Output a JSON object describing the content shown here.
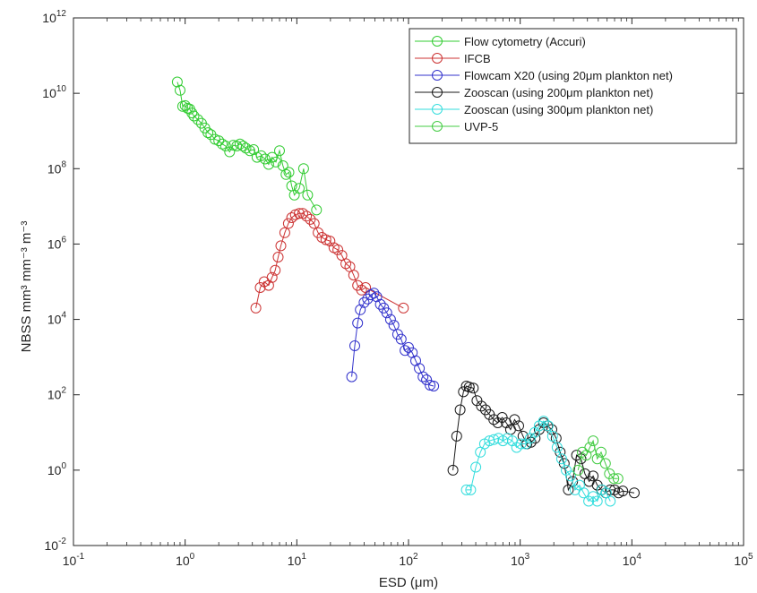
{
  "chart_data": {
    "type": "scatter",
    "title": "",
    "xlabel": "ESD (μm)",
    "ylabel": "NBSS mm³ mm⁻³ m⁻³",
    "xscale": "log",
    "yscale": "log",
    "xlim": [
      0.1,
      100000
    ],
    "ylim": [
      0.01,
      1000000000000
    ],
    "x_ticks": [
      {
        "base": "10",
        "exp": "-1"
      },
      {
        "base": "10",
        "exp": "0"
      },
      {
        "base": "10",
        "exp": "1"
      },
      {
        "base": "10",
        "exp": "2"
      },
      {
        "base": "10",
        "exp": "3"
      },
      {
        "base": "10",
        "exp": "4"
      },
      {
        "base": "10",
        "exp": "5"
      }
    ],
    "y_ticks": [
      {
        "base": "10",
        "exp": "-2"
      },
      {
        "base": "10",
        "exp": "0"
      },
      {
        "base": "10",
        "exp": "2"
      },
      {
        "base": "10",
        "exp": "4"
      },
      {
        "base": "10",
        "exp": "6"
      },
      {
        "base": "10",
        "exp": "8"
      },
      {
        "base": "10",
        "exp": "10"
      },
      {
        "base": "10",
        "exp": "12"
      }
    ],
    "grid": false,
    "legend_position": "top-right",
    "marker": "open-circle",
    "series": [
      {
        "name": "Flow cytometry (Accuri)",
        "color": "#33cc33",
        "points": [
          [
            0.85,
            20000000000
          ],
          [
            0.9,
            12000000000
          ],
          [
            0.95,
            4500000000
          ],
          [
            1.0,
            4700000000
          ],
          [
            1.05,
            4000000000
          ],
          [
            1.1,
            3800000000
          ],
          [
            1.15,
            3000000000
          ],
          [
            1.2,
            2500000000
          ],
          [
            1.3,
            2000000000
          ],
          [
            1.4,
            1600000000
          ],
          [
            1.5,
            1200000000
          ],
          [
            1.6,
            900000000
          ],
          [
            1.7,
            800000000
          ],
          [
            1.85,
            600000000
          ],
          [
            2.0,
            550000000
          ],
          [
            2.15,
            450000000
          ],
          [
            2.3,
            400000000
          ],
          [
            2.5,
            280000000
          ],
          [
            2.7,
            420000000
          ],
          [
            2.9,
            400000000
          ],
          [
            3.1,
            450000000
          ],
          [
            3.3,
            400000000
          ],
          [
            3.5,
            350000000
          ],
          [
            3.8,
            300000000
          ],
          [
            4.1,
            320000000
          ],
          [
            4.4,
            200000000
          ],
          [
            4.8,
            220000000
          ],
          [
            5.2,
            180000000
          ],
          [
            5.6,
            130000000
          ],
          [
            6.0,
            200000000
          ],
          [
            6.5,
            150000000
          ],
          [
            7.0,
            300000000
          ],
          [
            7.5,
            120000000
          ],
          [
            8.0,
            70000000
          ],
          [
            8.5,
            80000000
          ],
          [
            9.0,
            35000000
          ],
          [
            9.5,
            20000000
          ],
          [
            10.5,
            30000000
          ],
          [
            11.5,
            100000000
          ],
          [
            12.5,
            20000000
          ],
          [
            15.0,
            8000000
          ]
        ]
      },
      {
        "name": "IFCB",
        "color": "#cc3333",
        "points": [
          [
            4.3,
            20000
          ],
          [
            4.7,
            70000
          ],
          [
            5.1,
            100000
          ],
          [
            5.6,
            80000
          ],
          [
            6.0,
            130000
          ],
          [
            6.4,
            200000
          ],
          [
            6.8,
            450000
          ],
          [
            7.2,
            900000
          ],
          [
            7.8,
            2000000
          ],
          [
            8.4,
            3500000
          ],
          [
            9.0,
            5000000
          ],
          [
            9.7,
            6000000
          ],
          [
            10.5,
            6500000
          ],
          [
            11.3,
            6500000
          ],
          [
            12.2,
            5500000
          ],
          [
            13.2,
            4500000
          ],
          [
            14.3,
            3500000
          ],
          [
            15.5,
            2000000
          ],
          [
            16.8,
            1500000
          ],
          [
            18.2,
            1300000
          ],
          [
            19.8,
            1200000
          ],
          [
            21.5,
            800000
          ],
          [
            23.3,
            700000
          ],
          [
            25.3,
            500000
          ],
          [
            27.5,
            300000
          ],
          [
            29.8,
            250000
          ],
          [
            32.3,
            150000
          ],
          [
            35.0,
            80000
          ],
          [
            38.0,
            60000
          ],
          [
            41.3,
            70000
          ],
          [
            90.0,
            20000
          ]
        ]
      },
      {
        "name": "Flowcam X20 (using 20μm plankton net)",
        "color": "#3333cc",
        "points": [
          [
            31,
            300
          ],
          [
            33,
            2000
          ],
          [
            35,
            8000
          ],
          [
            37,
            18000
          ],
          [
            40,
            28000
          ],
          [
            43,
            35000
          ],
          [
            46,
            45000
          ],
          [
            49,
            50000
          ],
          [
            52,
            40000
          ],
          [
            56,
            25000
          ],
          [
            60,
            20000
          ],
          [
            64,
            15000
          ],
          [
            69,
            10000
          ],
          [
            74,
            7000
          ],
          [
            80,
            4000
          ],
          [
            86,
            3000
          ],
          [
            93,
            1500
          ],
          [
            100,
            1800
          ],
          [
            108,
            1300
          ],
          [
            116,
            800
          ],
          [
            125,
            500
          ],
          [
            135,
            300
          ],
          [
            145,
            250
          ],
          [
            156,
            180
          ],
          [
            168,
            170
          ]
        ]
      },
      {
        "name": "Zooscan (using 200μm plankton net)",
        "color": "#1a1a1a",
        "points": [
          [
            250,
            1
          ],
          [
            270,
            8
          ],
          [
            290,
            40
          ],
          [
            310,
            120
          ],
          [
            330,
            170
          ],
          [
            350,
            160
          ],
          [
            380,
            150
          ],
          [
            410,
            70
          ],
          [
            450,
            50
          ],
          [
            490,
            40
          ],
          [
            530,
            30
          ],
          [
            580,
            22
          ],
          [
            630,
            18
          ],
          [
            690,
            25
          ],
          [
            750,
            18
          ],
          [
            820,
            12
          ],
          [
            890,
            22
          ],
          [
            970,
            15
          ],
          [
            1060,
            8
          ],
          [
            1150,
            5
          ],
          [
            1250,
            5.5
          ],
          [
            1360,
            7
          ],
          [
            1480,
            12
          ],
          [
            1620,
            18
          ],
          [
            1760,
            15
          ],
          [
            1920,
            12
          ],
          [
            2100,
            7
          ],
          [
            2280,
            3
          ],
          [
            2480,
            1.5
          ],
          [
            2700,
            0.3
          ],
          [
            2950,
            0.5
          ],
          [
            3200,
            2.5
          ],
          [
            3500,
            2
          ],
          [
            3800,
            0.8
          ],
          [
            4150,
            0.5
          ],
          [
            4500,
            0.7
          ],
          [
            4900,
            0.4
          ],
          [
            5350,
            0.3
          ],
          [
            5850,
            0.25
          ],
          [
            6400,
            0.3
          ],
          [
            7000,
            0.3
          ],
          [
            7600,
            0.25
          ],
          [
            8300,
            0.28
          ],
          [
            10500,
            0.25
          ]
        ]
      },
      {
        "name": "Zooscan (using 300μm plankton net)",
        "color": "#33dddd",
        "points": [
          [
            330,
            0.3
          ],
          [
            360,
            0.3
          ],
          [
            400,
            1.2
          ],
          [
            440,
            3
          ],
          [
            480,
            5
          ],
          [
            530,
            6
          ],
          [
            580,
            6.5
          ],
          [
            640,
            7
          ],
          [
            700,
            6
          ],
          [
            770,
            7
          ],
          [
            850,
            6
          ],
          [
            930,
            4
          ],
          [
            1020,
            5
          ],
          [
            1120,
            5
          ],
          [
            1230,
            7
          ],
          [
            1350,
            10
          ],
          [
            1480,
            15
          ],
          [
            1620,
            20
          ],
          [
            1780,
            15
          ],
          [
            1950,
            8
          ],
          [
            2140,
            4
          ],
          [
            2350,
            2
          ],
          [
            2580,
            1
          ],
          [
            2830,
            0.7
          ],
          [
            3100,
            0.3
          ],
          [
            3400,
            0.4
          ],
          [
            3700,
            0.25
          ],
          [
            4100,
            0.15
          ],
          [
            4500,
            0.2
          ],
          [
            4900,
            0.15
          ],
          [
            5400,
            0.3
          ],
          [
            5900,
            0.25
          ],
          [
            6400,
            0.15
          ]
        ]
      },
      {
        "name": "UVP-5",
        "color": "#44cc44",
        "points": [
          [
            3300,
            1
          ],
          [
            3600,
            3
          ],
          [
            3900,
            2.5
          ],
          [
            4200,
            4
          ],
          [
            4500,
            6
          ],
          [
            4900,
            2
          ],
          [
            5300,
            3
          ],
          [
            5800,
            1.5
          ],
          [
            6300,
            0.8
          ],
          [
            6900,
            0.6
          ],
          [
            7500,
            0.6
          ]
        ]
      }
    ]
  }
}
